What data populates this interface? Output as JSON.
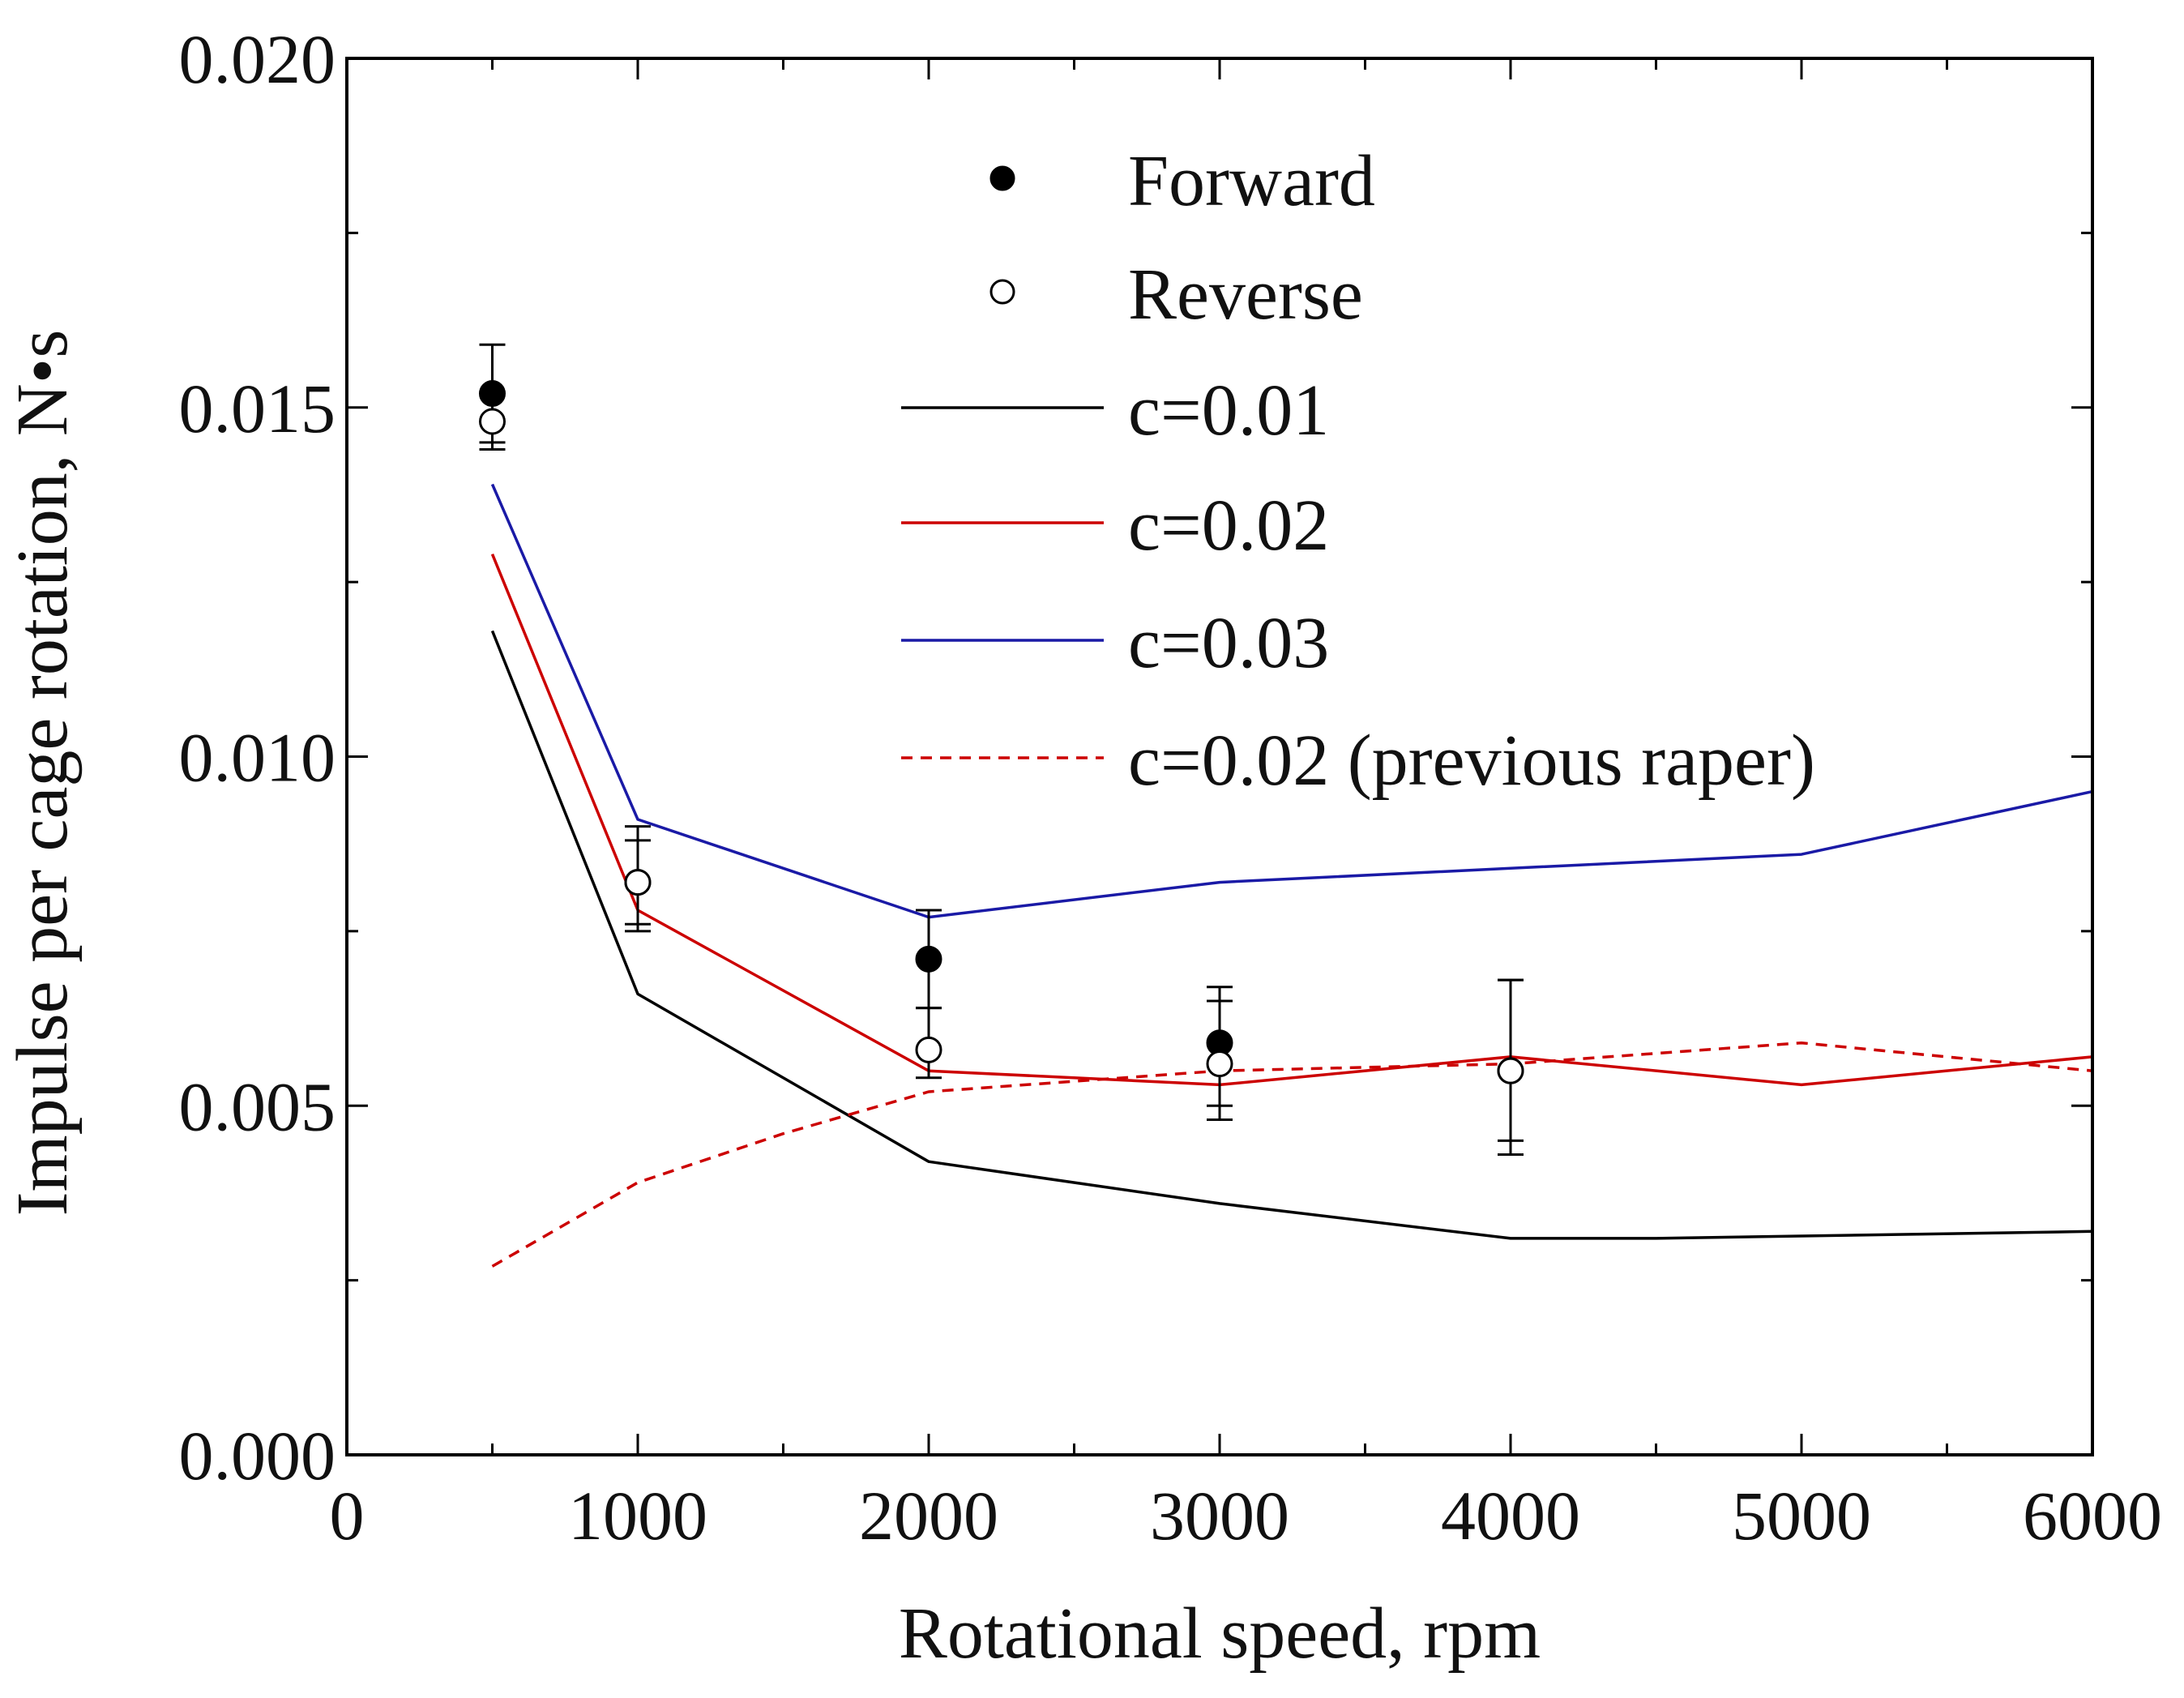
{
  "chart_data": {
    "type": "line",
    "title": "",
    "xlabel": "Rotational speed, rpm",
    "ylabel": "Impulse per cage rotation, N•s",
    "xlim": [
      0,
      6000
    ],
    "ylim": [
      0,
      0.02
    ],
    "x_ticks": [
      0,
      1000,
      2000,
      3000,
      4000,
      5000,
      6000
    ],
    "x_tick_labels": [
      "0",
      "1000",
      "2000",
      "3000",
      "4000",
      "5000",
      "6000"
    ],
    "y_ticks": [
      0,
      0.005,
      0.01,
      0.015,
      0.02
    ],
    "y_tick_labels": [
      "0.000",
      "0.005",
      "0.010",
      "0.015",
      "0.020"
    ],
    "legend_position": "top-right",
    "series": [
      {
        "name": "Forward",
        "kind": "scatter",
        "marker": "filled-circle",
        "color": "#000000",
        "x": [
          500,
          1000,
          2000,
          3000,
          4000
        ],
        "y": [
          0.0152,
          0.0082,
          0.0071,
          0.0059,
          0.0055
        ],
        "err_low": [
          0.0145,
          0.0076,
          0.0064,
          0.005,
          0.0045
        ],
        "err_high": [
          0.0159,
          0.009,
          0.0078,
          0.0067,
          0.0068
        ]
      },
      {
        "name": "Reverse",
        "kind": "scatter",
        "marker": "open-circle",
        "color": "#000000",
        "x": [
          500,
          1000,
          2000,
          3000,
          4000
        ],
        "y": [
          0.0148,
          0.0082,
          0.0058,
          0.0056,
          0.0055
        ],
        "err_low": [
          0.0144,
          0.0075,
          0.0054,
          0.0048,
          0.0043
        ],
        "err_high": [
          0.0152,
          0.0088,
          0.0064,
          0.0065,
          0.0068
        ]
      },
      {
        "name": "c=0.01",
        "kind": "line",
        "dash": "solid",
        "color": "#000000",
        "x": [
          500,
          1000,
          2000,
          3000,
          4000,
          4500,
          6000
        ],
        "y": [
          0.0118,
          0.0066,
          0.0042,
          0.0036,
          0.0031,
          0.0031,
          0.0032
        ]
      },
      {
        "name": "c=0.02",
        "kind": "line",
        "dash": "solid",
        "color": "#cc0000",
        "x": [
          500,
          1000,
          2000,
          2500,
          3000,
          4000,
          5000,
          6000
        ],
        "y": [
          0.0129,
          0.0078,
          0.0055,
          0.0054,
          0.0053,
          0.0057,
          0.0053,
          0.0057
        ]
      },
      {
        "name": "c=0.03",
        "kind": "line",
        "dash": "solid",
        "color": "#1a1aa6",
        "x": [
          500,
          1000,
          2000,
          3000,
          4000,
          5000,
          6000
        ],
        "y": [
          0.0139,
          0.0091,
          0.0077,
          0.0082,
          0.0084,
          0.0086,
          0.0095
        ]
      },
      {
        "name": "c=0.02 (previous raper)",
        "kind": "line",
        "dash": "dashed",
        "color": "#cc0000",
        "x": [
          500,
          1000,
          1500,
          2000,
          3000,
          4000,
          5000,
          6000
        ],
        "y": [
          0.0027,
          0.0039,
          0.0046,
          0.0052,
          0.0055,
          0.0056,
          0.0059,
          0.0055
        ]
      }
    ]
  }
}
